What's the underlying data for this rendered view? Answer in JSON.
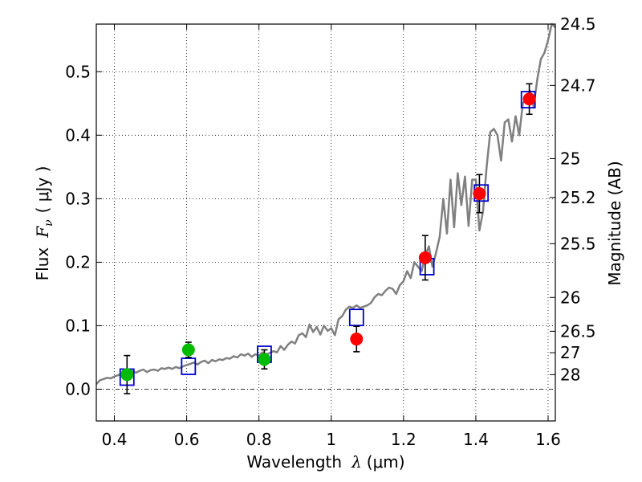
{
  "chart_data": {
    "type": "scatter",
    "title": "",
    "xlabel": "Wavelength",
    "xlabel_symbol": "λ",
    "xlabel_unit": "(μm)",
    "ylabel": "Flux",
    "ylabel_symbol": "F",
    "ylabel_subscript": "ν",
    "ylabel_unit": "( μJy )",
    "y2label": "Magnitude (AB)",
    "xlim": [
      0.35,
      1.62
    ],
    "ylim": [
      -0.05,
      0.575
    ],
    "grid": true,
    "grid_style": "dotted",
    "xticks": [
      0.4,
      0.6,
      0.8,
      1.0,
      1.2,
      1.4,
      1.6
    ],
    "xtick_labels": [
      "0.4",
      "0.6",
      "0.8",
      "1",
      "1.2",
      "1.4",
      "1.6"
    ],
    "yticks": [
      0.0,
      0.1,
      0.2,
      0.3,
      0.4,
      0.5
    ],
    "ytick_labels": [
      "0.0",
      "0.1",
      "0.2",
      "0.3",
      "0.4",
      "0.5"
    ],
    "y2ticks": [
      {
        "flux": 0.575,
        "label": "24.5"
      },
      {
        "flux": 0.4784,
        "label": "24.7"
      },
      {
        "flux": 0.3631,
        "label": "25"
      },
      {
        "flux": 0.302,
        "label": "25.2"
      },
      {
        "flux": 0.2291,
        "label": "25.5"
      },
      {
        "flux": 0.1445,
        "label": "26"
      },
      {
        "flux": 0.0912,
        "label": "26.5"
      },
      {
        "flux": 0.0575,
        "label": "27"
      },
      {
        "flux": 0.0229,
        "label": "28"
      }
    ],
    "zero_line": true,
    "series": [
      {
        "kind": "line",
        "color": "#808080",
        "x": [
          0.35,
          0.36,
          0.37,
          0.38,
          0.39,
          0.4,
          0.41,
          0.42,
          0.43,
          0.44,
          0.45,
          0.46,
          0.47,
          0.48,
          0.49,
          0.5,
          0.51,
          0.52,
          0.53,
          0.54,
          0.55,
          0.56,
          0.57,
          0.58,
          0.59,
          0.6,
          0.61,
          0.62,
          0.63,
          0.64,
          0.65,
          0.66,
          0.67,
          0.68,
          0.69,
          0.7,
          0.71,
          0.72,
          0.73,
          0.74,
          0.75,
          0.76,
          0.77,
          0.78,
          0.79,
          0.8,
          0.81,
          0.82,
          0.83,
          0.84,
          0.85,
          0.86,
          0.87,
          0.88,
          0.89,
          0.9,
          0.91,
          0.92,
          0.93,
          0.94,
          0.95,
          0.96,
          0.97,
          0.98,
          0.99,
          1.0,
          1.01,
          1.02,
          1.03,
          1.04,
          1.05,
          1.06,
          1.07,
          1.08,
          1.09,
          1.1,
          1.11,
          1.12,
          1.13,
          1.14,
          1.15,
          1.16,
          1.17,
          1.18,
          1.19,
          1.2,
          1.21,
          1.22,
          1.23,
          1.24,
          1.25,
          1.26,
          1.27,
          1.28,
          1.29,
          1.3,
          1.31,
          1.32,
          1.33,
          1.34,
          1.35,
          1.36,
          1.37,
          1.38,
          1.39,
          1.4,
          1.41,
          1.42,
          1.43,
          1.44,
          1.45,
          1.46,
          1.47,
          1.48,
          1.49,
          1.5,
          1.51,
          1.52,
          1.53,
          1.54,
          1.55,
          1.56,
          1.57,
          1.58,
          1.59,
          1.6,
          1.61,
          1.62
        ],
        "y": [
          0.008,
          0.014,
          0.016,
          0.018,
          0.017,
          0.02,
          0.022,
          0.024,
          0.023,
          0.025,
          0.028,
          0.026,
          0.029,
          0.031,
          0.027,
          0.03,
          0.031,
          0.029,
          0.033,
          0.032,
          0.034,
          0.032,
          0.035,
          0.033,
          0.036,
          0.038,
          0.04,
          0.042,
          0.039,
          0.043,
          0.045,
          0.041,
          0.046,
          0.044,
          0.047,
          0.046,
          0.049,
          0.048,
          0.052,
          0.05,
          0.055,
          0.053,
          0.056,
          0.051,
          0.055,
          0.053,
          0.058,
          0.055,
          0.057,
          0.06,
          0.058,
          0.068,
          0.062,
          0.07,
          0.075,
          0.072,
          0.085,
          0.088,
          0.082,
          0.102,
          0.09,
          0.098,
          0.086,
          0.1,
          0.092,
          0.096,
          0.085,
          0.11,
          0.115,
          0.125,
          0.13,
          0.128,
          0.132,
          0.128,
          0.13,
          0.132,
          0.136,
          0.145,
          0.15,
          0.148,
          0.155,
          0.16,
          0.158,
          0.15,
          0.164,
          0.17,
          0.186,
          0.175,
          0.2,
          0.193,
          0.186,
          0.21,
          0.225,
          0.193,
          0.215,
          0.24,
          0.3,
          0.245,
          0.33,
          0.255,
          0.34,
          0.29,
          0.335,
          0.257,
          0.33,
          0.33,
          0.25,
          0.28,
          0.35,
          0.405,
          0.41,
          0.4,
          0.36,
          0.42,
          0.425,
          0.39,
          0.43,
          0.4,
          0.45,
          0.46,
          0.47,
          0.445,
          0.488,
          0.52,
          0.53,
          0.55,
          0.575,
          0.57
        ]
      },
      {
        "kind": "markers",
        "marker": "square",
        "color": "#0000cc",
        "x": [
          0.435,
          0.605,
          0.815,
          1.07,
          1.265,
          1.415,
          1.545
        ],
        "y": [
          0.019,
          0.036,
          0.055,
          0.113,
          0.193,
          0.309,
          0.456
        ]
      },
      {
        "kind": "markers",
        "marker": "circle",
        "color": "#00bb00",
        "x": [
          0.435,
          0.605,
          0.815
        ],
        "y": [
          0.023,
          0.062,
          0.047
        ],
        "yerr": [
          0.03,
          0.012,
          0.015
        ]
      },
      {
        "kind": "markers",
        "marker": "circle",
        "color": "#ff0000",
        "x": [
          1.07,
          1.26,
          1.41,
          1.548
        ],
        "y": [
          0.079,
          0.207,
          0.308,
          0.457
        ],
        "yerr": [
          0.02,
          0.035,
          0.03,
          0.024
        ]
      }
    ]
  }
}
